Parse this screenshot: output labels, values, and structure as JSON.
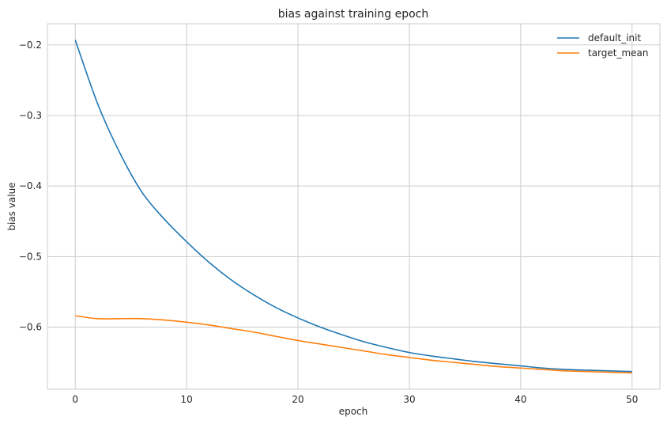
{
  "chart_data": {
    "type": "line",
    "title": "bias against training epoch",
    "xlabel": "epoch",
    "ylabel": "bias value",
    "xlim": [
      -2.5,
      52.5
    ],
    "ylim": [
      -0.688,
      -0.17
    ],
    "xticks": [
      0,
      10,
      20,
      30,
      40,
      50
    ],
    "xtick_labels": [
      "0",
      "10",
      "20",
      "30",
      "40",
      "50"
    ],
    "yticks": [
      -0.2,
      -0.3,
      -0.4,
      -0.5,
      -0.6
    ],
    "ytick_labels": [
      "−0.2",
      "−0.3",
      "−0.4",
      "−0.5",
      "−0.6"
    ],
    "grid": true,
    "legend_position": "top-right",
    "x": [
      0,
      2,
      4,
      6,
      8,
      10,
      12,
      14,
      16,
      18,
      20,
      22,
      24,
      26,
      28,
      30,
      32,
      34,
      36,
      38,
      40,
      42,
      44,
      46,
      48,
      50
    ],
    "series": [
      {
        "name": "default_init",
        "color": "#1f77b4",
        "values": [
          -0.193,
          -0.283,
          -0.353,
          -0.409,
          -0.447,
          -0.479,
          -0.508,
          -0.533,
          -0.554,
          -0.572,
          -0.587,
          -0.6,
          -0.611,
          -0.621,
          -0.629,
          -0.636,
          -0.641,
          -0.645,
          -0.649,
          -0.652,
          -0.655,
          -0.658,
          -0.66,
          -0.661,
          -0.662,
          -0.663
        ]
      },
      {
        "name": "target_mean",
        "color": "#ff7f0e",
        "values": [
          -0.584,
          -0.588,
          -0.588,
          -0.588,
          -0.59,
          -0.593,
          -0.597,
          -0.602,
          -0.607,
          -0.613,
          -0.619,
          -0.624,
          -0.629,
          -0.634,
          -0.639,
          -0.643,
          -0.647,
          -0.65,
          -0.653,
          -0.656,
          -0.658,
          -0.66,
          -0.662,
          -0.663,
          -0.664,
          -0.665
        ]
      }
    ]
  }
}
